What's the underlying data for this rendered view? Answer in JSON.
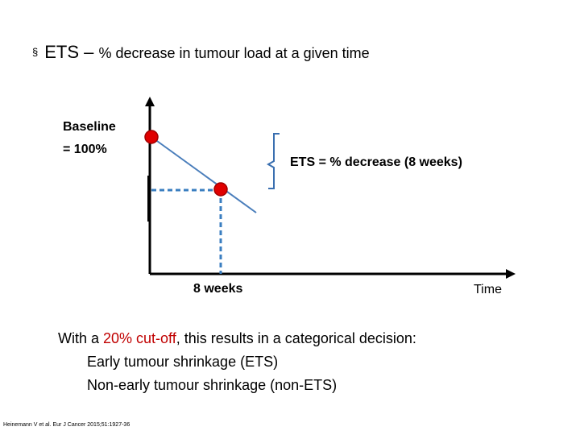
{
  "slide": {
    "bullet_glyph": "§",
    "title_prefix": "ETS – ",
    "title_rest": "% decrease in tumour load at a given time"
  },
  "diagram": {
    "baseline_line1": "Baseline",
    "baseline_line2": "= 100%",
    "brace_label": "ETS = % decrease (8 weeks)",
    "x_marker_label": "8 weeks",
    "x_axis_label": "Time",
    "colors": {
      "line": "#4A7EBB",
      "dashed": "#3A7EC0",
      "point_fill": "#E00000",
      "point_stroke": "#A00000",
      "axis": "#000000"
    }
  },
  "body": {
    "line1_before": "With a ",
    "line1_highlight": "20% cut-off",
    "line1_after": ", this results in a categorical decision:",
    "option1": "Early tumour shrinkage (ETS)",
    "option2": "Non-early tumour shrinkage (non-ETS)",
    "highlight_color": "#C00000"
  },
  "reference": "Heinemann V et al. Eur J Cancer 2015;51:1927-36"
}
